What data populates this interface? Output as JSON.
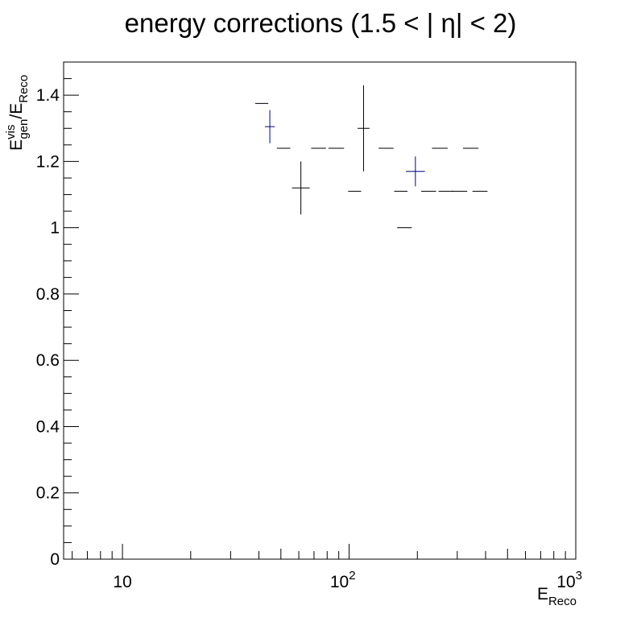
{
  "chart_data": {
    "type": "scatter",
    "title": "energy corrections (1.5 < | η| < 2)",
    "xlabel": {
      "main": "E",
      "sub": "Reco"
    },
    "ylabel": {
      "main": "E",
      "sup": "vis",
      "sub": "gen",
      "sep": "/E",
      "sub2": "Reco"
    },
    "x_scale": "log",
    "xlim": [
      5.5,
      1000
    ],
    "ylim": [
      0,
      1.5
    ],
    "x_ticks": [
      {
        "value": 10,
        "label": "10"
      },
      {
        "value": 100,
        "label": "10",
        "exp": "2"
      },
      {
        "value": 1000,
        "label": "10",
        "exp": "3"
      }
    ],
    "y_ticks": [
      {
        "value": 0,
        "label": "0"
      },
      {
        "value": 0.2,
        "label": "0.2"
      },
      {
        "value": 0.4,
        "label": "0.4"
      },
      {
        "value": 0.6,
        "label": "0.6"
      },
      {
        "value": 0.8,
        "label": "0.8"
      },
      {
        "value": 1.0,
        "label": "1"
      },
      {
        "value": 1.2,
        "label": "1.2"
      },
      {
        "value": 1.4,
        "label": "1.4"
      }
    ],
    "grid": false,
    "series": [
      {
        "color": "#000080",
        "points": [
          {
            "x_low": 42.5,
            "x_high": 47.0,
            "y": 1.305,
            "y_err": 0.05
          },
          {
            "x_low": 178,
            "x_high": 216,
            "y": 1.17,
            "y_err": 0.045
          }
        ]
      },
      {
        "color": "#000000",
        "points": [
          {
            "x_low": 38.5,
            "x_high": 44.0,
            "y": 1.375,
            "y_err": 0
          },
          {
            "x_low": 48.0,
            "x_high": 55.0,
            "y": 1.24,
            "y_err": 0
          },
          {
            "x_low": 56.0,
            "x_high": 67.0,
            "y": 1.12,
            "y_err": 0.08
          },
          {
            "x_low": 68.0,
            "x_high": 79.0,
            "y": 1.24,
            "y_err": 0
          },
          {
            "x_low": 81.0,
            "x_high": 95.0,
            "y": 1.24,
            "y_err": 0
          },
          {
            "x_low": 99.0,
            "x_high": 113.0,
            "y": 1.11,
            "y_err": 0
          },
          {
            "x_low": 109.0,
            "x_high": 123.0,
            "y": 1.3,
            "y_err": 0.13
          },
          {
            "x_low": 135.0,
            "x_high": 157.0,
            "y": 1.24,
            "y_err": 0
          },
          {
            "x_low": 158.0,
            "x_high": 181.0,
            "y": 1.11,
            "y_err": 0
          },
          {
            "x_low": 163.0,
            "x_high": 189.0,
            "y": 1.0,
            "y_err": 0
          },
          {
            "x_low": 208.0,
            "x_high": 242.0,
            "y": 1.11,
            "y_err": 0
          },
          {
            "x_low": 232.0,
            "x_high": 272.0,
            "y": 1.24,
            "y_err": 0
          },
          {
            "x_low": 248.0,
            "x_high": 288.0,
            "y": 1.11,
            "y_err": 0
          },
          {
            "x_low": 284.0,
            "x_high": 332.0,
            "y": 1.11,
            "y_err": 0
          },
          {
            "x_low": 318.0,
            "x_high": 372.0,
            "y": 1.24,
            "y_err": 0
          },
          {
            "x_low": 350.0,
            "x_high": 408.0,
            "y": 1.11,
            "y_err": 0
          }
        ]
      }
    ]
  }
}
